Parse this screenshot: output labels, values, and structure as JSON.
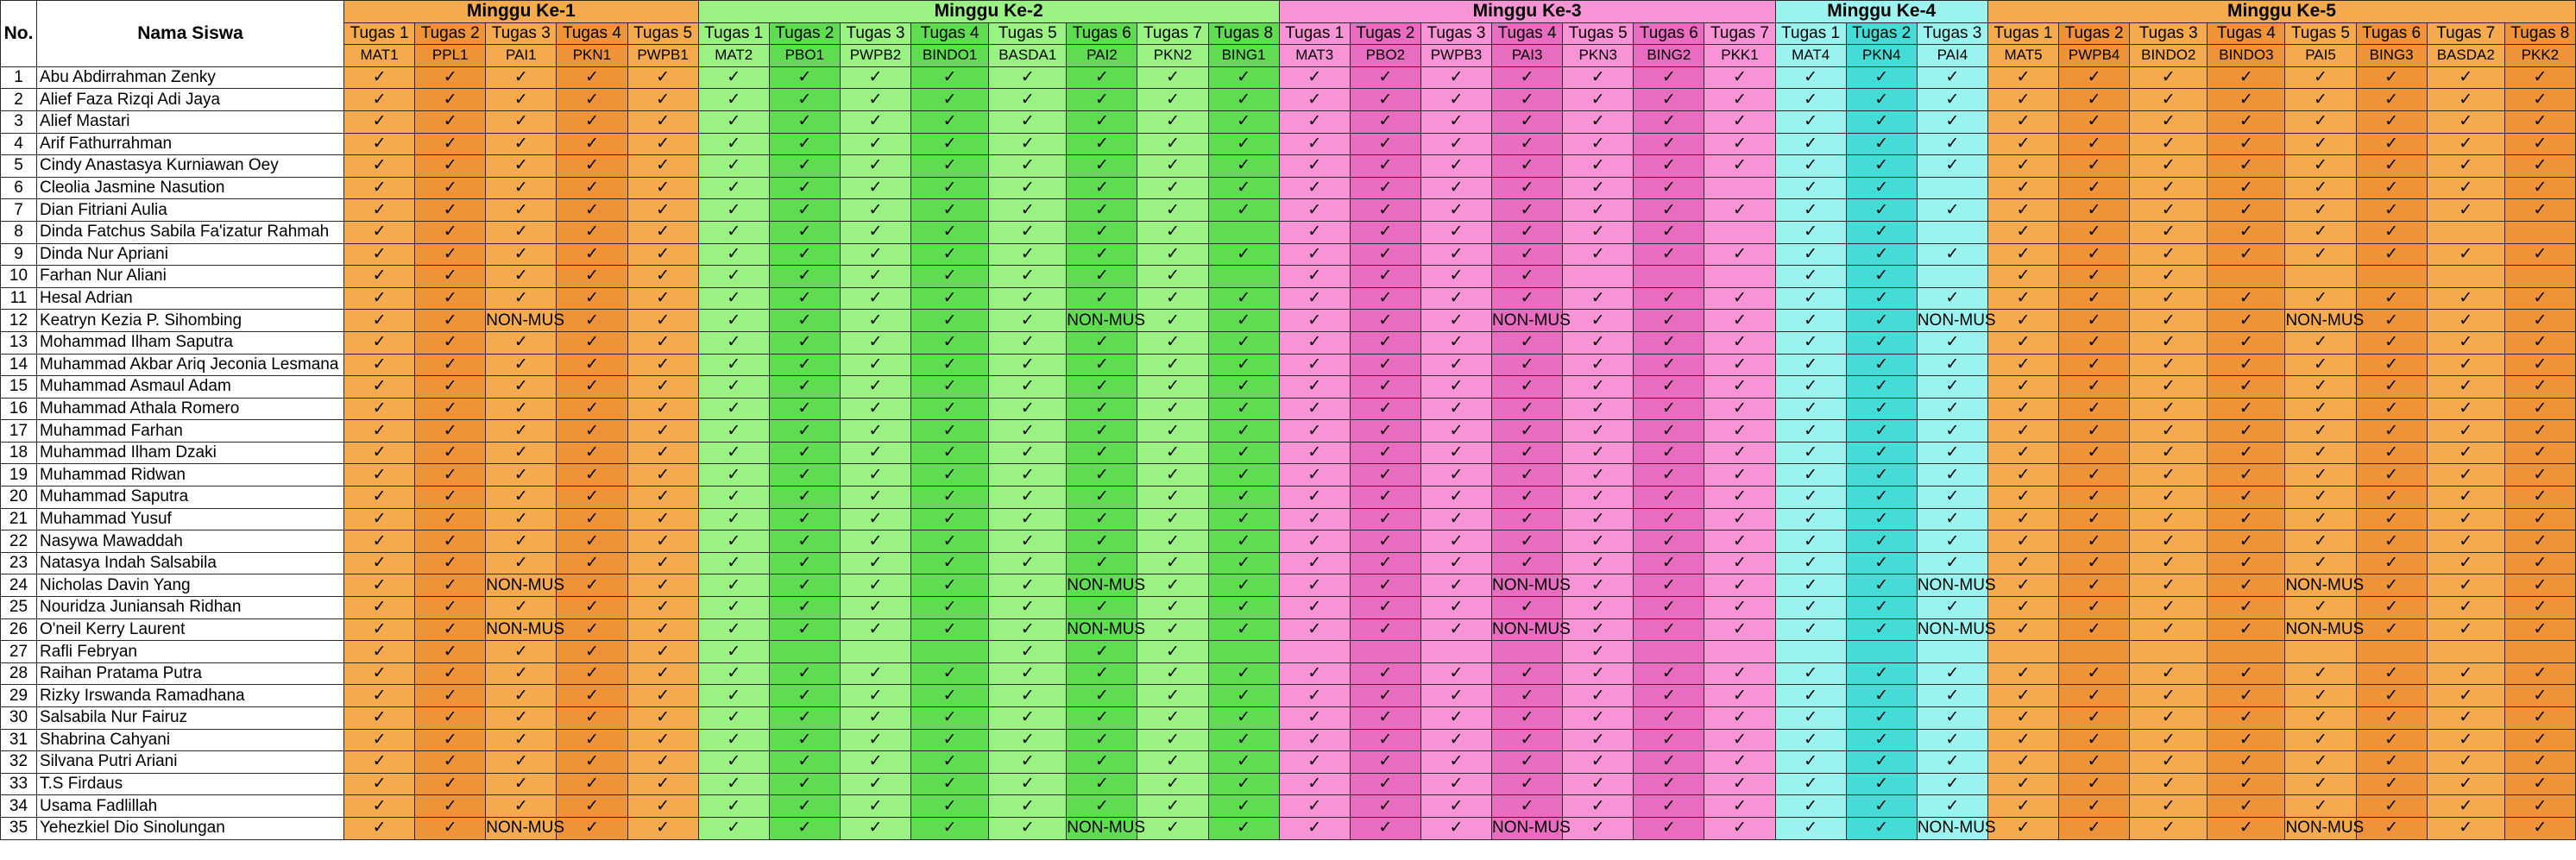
{
  "headers": {
    "no": "No.",
    "name": "Nama Siswa",
    "weeks": [
      {
        "label": "Minggu Ke-1",
        "colors": [
          "#f5ab4d",
          "#ee9338"
        ],
        "tasks": [
          "Tugas 1",
          "Tugas 2",
          "Tugas 3",
          "Tugas 4",
          "Tugas 5"
        ],
        "codes": [
          "MAT1",
          "PPL1",
          "PAI1",
          "PKN1",
          "PWPB1"
        ]
      },
      {
        "label": "Minggu Ke-2",
        "colors": [
          "#9af283",
          "#5fdc52"
        ],
        "tasks": [
          "Tugas 1",
          "Tugas 2",
          "Tugas 3",
          "Tugas 4",
          "Tugas 5",
          "Tugas 6",
          "Tugas 7",
          "Tugas 8"
        ],
        "codes": [
          "MAT2",
          "PBO1",
          "PWPB2",
          "BINDO1",
          "BASDA1",
          "PAI2",
          "PKN2",
          "BING1"
        ]
      },
      {
        "label": "Minggu Ke-3",
        "colors": [
          "#f893d6",
          "#e86cc0"
        ],
        "tasks": [
          "Tugas 1",
          "Tugas 2",
          "Tugas 3",
          "Tugas 4",
          "Tugas 5",
          "Tugas 6",
          "Tugas 7"
        ],
        "codes": [
          "MAT3",
          "PBO2",
          "PWPB3",
          "PAI3",
          "PKN3",
          "BING2",
          "PKK1"
        ]
      },
      {
        "label": "Minggu Ke-4",
        "colors": [
          "#9bf3ef",
          "#45dcd7"
        ],
        "tasks": [
          "Tugas 1",
          "Tugas 2",
          "Tugas 3"
        ],
        "codes": [
          "MAT4",
          "PKN4",
          "PAI4"
        ]
      },
      {
        "label": "Minggu Ke-5",
        "colors": [
          "#f5ab4d",
          "#ee9338"
        ],
        "tasks": [
          "Tugas 1",
          "Tugas 2",
          "Tugas 3",
          "Tugas 4",
          "Tugas 5",
          "Tugas 6",
          "Tugas 7",
          "Tugas 8"
        ],
        "codes": [
          "MAT5",
          "PWPB4",
          "BINDO2",
          "BINDO3",
          "PAI5",
          "BING3",
          "BASDA2",
          "PKK2"
        ]
      }
    ]
  },
  "marks": {
    "check": "✓",
    "nonmus": "NON-MUS"
  },
  "students": [
    {
      "no": "1",
      "name": "Abu Abdirrahman Zenky",
      "status": "CCCCC CCCCCCCC CCCCCCC CCC CCCCCCCC"
    },
    {
      "no": "2",
      "name": "Alief Faza Rizqi Adi Jaya",
      "status": "CCCCC CCCCCCCC CCCCCCC CCC CCCCCCCC"
    },
    {
      "no": "3",
      "name": "Alief Mastari",
      "status": "CCCCC CCCCCCCC CCCCCCC CCC CCCCCCCC"
    },
    {
      "no": "4",
      "name": "Arif Fathurrahman",
      "status": "CCCCC CCCCCCCC CCCCCCC CCC CCCCCCCC"
    },
    {
      "no": "5",
      "name": "Cindy Anastasya Kurniawan Oey",
      "status": "CCCCC CCCCCCCC CCCCCCC CCC CCCCCCCC"
    },
    {
      "no": "6",
      "name": "Cleolia Jasmine Nasution",
      "status": "CCCCC CCCCCCCC CCCCCC. CC. CCCCCCCC"
    },
    {
      "no": "7",
      "name": "Dian Fitriani Aulia",
      "status": "CCCCC CCCCCCCC CCCCCCC CCC CCCCCCCC"
    },
    {
      "no": "8",
      "name": "Dinda Fatchus Sabila Fa'izatur Rahmah",
      "status": "CCCCC CCCCCCC. CCCCCC. CC. CCCCCC.."
    },
    {
      "no": "9",
      "name": "Dinda Nur Apriani",
      "status": "CCCCC CCCCCCCC CCCCCCC CCC CCCCCCCC"
    },
    {
      "no": "10",
      "name": "Farhan Nur Aliani",
      "status": "CCCCC CCCCCCC. CCCC... CC. CCC....."
    },
    {
      "no": "11",
      "name": "Hesal Adrian",
      "status": "CCCCC CCCCCCCC CCCCCCC CCC CCCCCCCC"
    },
    {
      "no": "12",
      "name": "Keatryn Kezia P. Sihombing",
      "status": "CCNCC CCCCCNCC CCCNCCC CCN CCCCNCCC"
    },
    {
      "no": "13",
      "name": "Mohammad Ilham Saputra",
      "status": "CCCCC CCCCCCCC CCCCCCC CCC CCCCCCCC"
    },
    {
      "no": "14",
      "name": "Muhammad Akbar Ariq Jeconia Lesmana",
      "status": "CCCCC CCCCCCCC CCCCCCC CCC CCCCCCCC"
    },
    {
      "no": "15",
      "name": "Muhammad Asmaul Adam",
      "status": "CCCCC CCCCCCCC CCCCCCC CCC CCCCCCCC"
    },
    {
      "no": "16",
      "name": "Muhammad Athala Romero",
      "status": "CCCCC CCCCCCCC CCCCCCC CCC CCCCCCCC"
    },
    {
      "no": "17",
      "name": "Muhammad Farhan",
      "status": "CCCCC CCCCCCCC CCCCCCC CCC CCCCCCCC"
    },
    {
      "no": "18",
      "name": "Muhammad Ilham Dzaki",
      "status": "CCCCC CCCCCCCC CCCCCCC CCC CCCCCCCC"
    },
    {
      "no": "19",
      "name": "Muhammad Ridwan",
      "status": "CCCCC CCCCCCCC CCCCCCC CCC CCCCCCCC"
    },
    {
      "no": "20",
      "name": "Muhammad Saputra",
      "status": "CCCCC CCCCCCCC CCCCCCC CCC CCCCCCCC"
    },
    {
      "no": "21",
      "name": "Muhammad Yusuf",
      "status": "CCCCC CCCCCCCC CCCCCCC CCC CCCCCCCC"
    },
    {
      "no": "22",
      "name": "Nasywa Mawaddah",
      "status": "CCCCC CCCCCCCC CCCCCCC CCC CCCCCCCC"
    },
    {
      "no": "23",
      "name": "Natasya Indah Salsabila",
      "status": "CCCCC CCCCCCCC CCCCCCC CCC CCCCCCCC"
    },
    {
      "no": "24",
      "name": "Nicholas Davin Yang",
      "status": "CCNCC CCCCCNCC CCCNCCC CCN CCCCNCCC"
    },
    {
      "no": "25",
      "name": "Nouridza Juniansah Ridhan",
      "status": "CCCCC CCCCCCCC CCCCCCC CCC CCCCCCCC"
    },
    {
      "no": "26",
      "name": "O'neil Kerry Laurent",
      "status": "CCNCC CCCCCNCC CCCNCCC CCN CCCCNCCC"
    },
    {
      "no": "27",
      "name": "Rafli Febryan",
      "status": "CCCCC C...CCC. ....C.. ... ........"
    },
    {
      "no": "28",
      "name": "Raihan Pratama Putra",
      "status": "CCCCC CCCCCCCC CCCCCCC CCC CCCCCCCC"
    },
    {
      "no": "29",
      "name": "Rizky Irswanda Ramadhana",
      "status": "CCCCC CCCCCCCC CCCCCCC CCC CCCCCCCC"
    },
    {
      "no": "30",
      "name": "Salsabila Nur Fairuz",
      "status": "CCCCC CCCCCCCC CCCCCCC CCC CCCCCCCC"
    },
    {
      "no": "31",
      "name": "Shabrina Cahyani",
      "status": "CCCCC CCCCCCCC CCCCCCC CCC CCCCCCCC"
    },
    {
      "no": "32",
      "name": "Silvana Putri Ariani",
      "status": "CCCCC CCCCCCCC CCCCCCC CCC CCCCCCCC"
    },
    {
      "no": "33",
      "name": "T.S Firdaus",
      "status": "CCCCC CCCCCCCC CCCCCCC CCC CCCCCCCC"
    },
    {
      "no": "34",
      "name": "Usama Fadlillah",
      "status": "CCCCC CCCCCCCC CCCCCCC CCC CCCCCCCC"
    },
    {
      "no": "35",
      "name": "Yehezkiel Dio Sinolungan",
      "status": "CCNCC CCCCCNCC CCCNCCC CCN CCCCNCCC"
    }
  ]
}
